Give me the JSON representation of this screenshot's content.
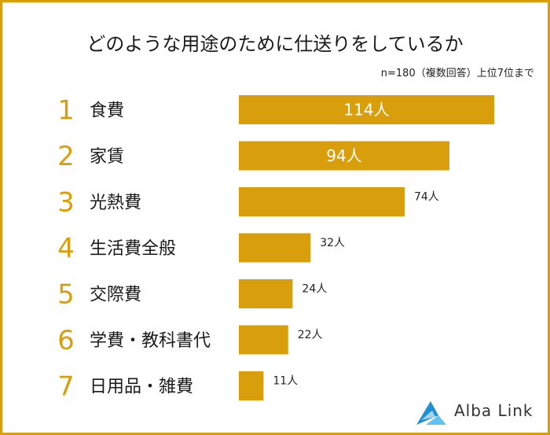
{
  "chart_data": {
    "type": "bar",
    "orientation": "horizontal",
    "title": "どのような用途のために仕送りをしているか",
    "note": "n=180（複数回答）上位7位まで",
    "ranks": [
      "1",
      "2",
      "3",
      "4",
      "5",
      "6",
      "7"
    ],
    "categories": [
      "食費",
      "家賃",
      "光熱費",
      "生活費全般",
      "交際費",
      "学費・教科書代",
      "日用品・雑費"
    ],
    "values": [
      114,
      94,
      74,
      32,
      24,
      22,
      11
    ],
    "value_labels": [
      "114人",
      "94人",
      "74人",
      "32人",
      "24人",
      "22人",
      "11人"
    ],
    "xlim": [
      0,
      114
    ],
    "bar_color": "#D99E0B",
    "rank_color": "#D99E0B",
    "grid": false
  },
  "brand": {
    "name": "Alba Link"
  }
}
